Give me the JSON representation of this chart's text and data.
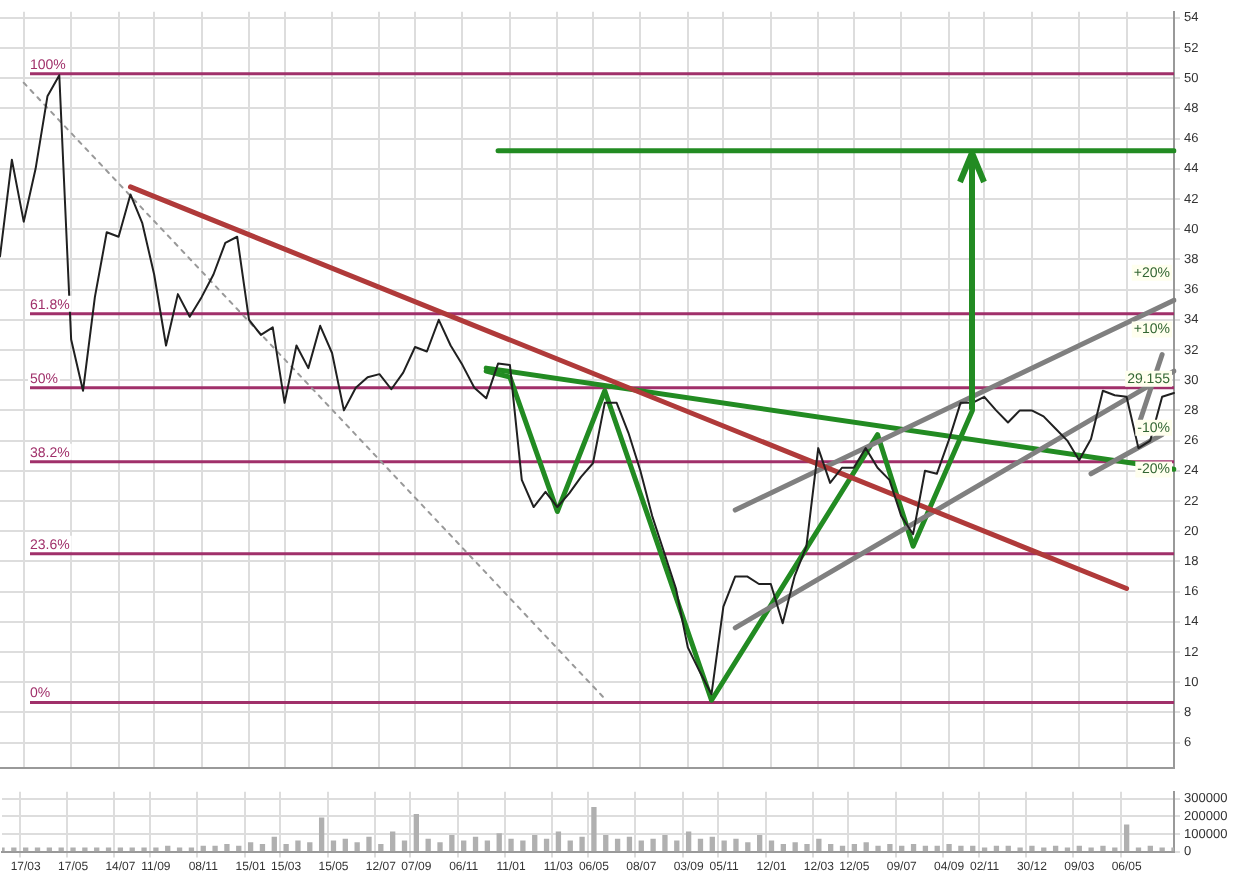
{
  "chart_data": [
    {
      "type": "line",
      "categories": [
        null,
        null,
        null,
        null,
        null,
        null,
        null,
        null,
        null,
        null,
        null,
        null,
        null,
        null,
        null,
        null,
        null,
        null,
        null,
        null,
        null,
        null,
        null,
        null,
        null,
        null,
        null,
        null,
        null,
        null,
        null,
        null,
        null,
        null,
        null,
        null,
        null,
        null,
        null,
        null,
        null,
        null,
        null,
        null,
        null,
        null,
        null,
        null,
        null,
        null,
        null,
        null,
        null,
        null,
        null,
        null,
        null,
        null,
        null,
        null,
        null,
        null,
        null,
        null,
        null,
        null,
        null,
        null,
        null,
        null,
        null,
        null,
        null,
        null,
        null,
        null,
        null,
        null,
        null,
        null,
        null,
        null,
        null,
        null,
        null,
        null,
        null,
        null,
        null,
        null,
        null,
        null,
        null,
        null,
        null,
        null,
        null,
        null,
        null,
        null
      ],
      "ylim": [
        4.3,
        54.4
      ],
      "yticks": [
        6,
        8,
        10,
        12,
        14,
        16,
        18,
        20,
        22,
        24,
        26,
        28,
        30,
        32,
        34,
        36,
        38,
        40,
        42,
        44,
        46,
        48,
        50,
        52,
        54
      ],
      "tick_labels": "y",
      "grid": true,
      "series": [
        {
          "color": "#202020",
          "values": [
            38.2,
            44.6,
            40.5,
            44,
            48.8,
            50.2,
            32.7,
            29.3,
            35.5,
            39.8,
            39.5,
            42.3,
            40.4,
            37,
            32.3,
            35.7,
            34.2,
            35.5,
            37,
            39.1,
            39.5,
            34,
            33,
            33.5,
            28.5,
            32.3,
            30.8,
            33.6,
            31.8,
            28,
            29.5,
            30.2,
            30.4,
            29.4,
            30.5,
            32.2,
            31.9,
            34,
            32.3,
            31,
            29.5,
            28.8,
            31.1,
            31,
            23.4,
            21.6,
            22.6,
            21.6,
            22.5,
            23.6,
            24.5,
            28.5,
            28.5,
            26.5,
            24,
            21,
            18.6,
            16.2,
            12.3,
            10.7,
            9.2,
            15,
            17,
            17,
            16.5,
            16.5,
            13.9,
            17,
            19,
            25.5,
            23.2,
            24.2,
            24.2,
            25.5,
            24.2,
            23.4,
            21,
            19.8,
            24,
            23.8,
            26,
            28.5,
            28.5,
            28.9,
            28,
            27.2,
            28,
            28,
            27.6,
            26.8,
            26,
            24.7,
            26.1,
            29.3,
            29,
            28.9,
            25.5,
            26,
            28.9,
            29.155
          ]
        },
        {
          "color": "#b03a3a",
          "values": [
            null,
            null,
            null,
            null,
            null,
            null,
            null,
            null,
            null,
            null,
            null,
            42.8,
            null,
            null,
            null,
            null,
            null,
            null,
            null,
            null,
            null,
            null,
            null,
            null,
            null,
            null,
            null,
            null,
            null,
            null,
            null,
            null,
            null,
            null,
            null,
            null,
            null,
            null,
            null,
            null,
            null,
            null,
            null,
            null,
            null,
            null,
            null,
            null,
            null,
            null,
            null,
            null,
            null,
            null,
            null,
            null,
            null,
            null,
            null,
            null,
            null,
            null,
            null,
            null,
            null,
            null,
            null,
            null,
            null,
            null,
            null,
            null,
            null,
            null,
            null,
            null,
            null,
            null,
            null,
            null,
            null,
            null,
            null,
            null,
            null,
            null,
            null,
            null,
            null,
            null,
            null,
            null,
            null,
            null,
            null,
            16.2,
            null,
            null,
            null,
            null
          ]
        },
        {
          "color": "#999999",
          "line_style": "dotted",
          "values": [
            null,
            null,
            49.7,
            null,
            null,
            null,
            null,
            null,
            null,
            null,
            null,
            null,
            null,
            null,
            null,
            null,
            null,
            null,
            null,
            null,
            null,
            null,
            null,
            null,
            null,
            null,
            null,
            null,
            null,
            null,
            null,
            null,
            null,
            null,
            null,
            null,
            null,
            null,
            null,
            null,
            null,
            null,
            null,
            null,
            null,
            null,
            null,
            null,
            null,
            null,
            null,
            8.9,
            null,
            null,
            null,
            null,
            null,
            null,
            null,
            null,
            null,
            null,
            null,
            null,
            null,
            null,
            null,
            null,
            null,
            null,
            null,
            null,
            null,
            null,
            null,
            null,
            null,
            null,
            null,
            null,
            null,
            null,
            null,
            null,
            null,
            null,
            null,
            null,
            null,
            null,
            null,
            null,
            null,
            null,
            null,
            null,
            null,
            null,
            null,
            null
          ]
        },
        {
          "color": "#808080",
          "values": [
            null,
            null,
            null,
            null,
            null,
            null,
            null,
            null,
            null,
            null,
            null,
            null,
            null,
            null,
            null,
            null,
            null,
            null,
            null,
            null,
            null,
            null,
            null,
            null,
            null,
            null,
            null,
            null,
            null,
            null,
            null,
            null,
            null,
            null,
            null,
            null,
            null,
            null,
            null,
            null,
            null,
            null,
            null,
            null,
            null,
            null,
            null,
            null,
            null,
            null,
            null,
            null,
            null,
            null,
            null,
            null,
            null,
            null,
            null,
            null,
            null,
            null,
            21.4,
            null,
            null,
            null,
            null,
            null,
            null,
            null,
            null,
            null,
            null,
            null,
            null,
            null,
            null,
            null,
            null,
            null,
            null,
            null,
            null,
            null,
            null,
            null,
            null,
            null,
            null,
            null,
            null,
            null,
            null,
            null,
            null,
            null,
            null,
            null,
            null,
            35.3
          ]
        },
        {
          "color": "#808080",
          "values": [
            null,
            null,
            null,
            null,
            null,
            null,
            null,
            null,
            null,
            null,
            null,
            null,
            null,
            null,
            null,
            null,
            null,
            null,
            null,
            null,
            null,
            null,
            null,
            null,
            null,
            null,
            null,
            null,
            null,
            null,
            null,
            null,
            null,
            null,
            null,
            null,
            null,
            null,
            null,
            null,
            null,
            null,
            null,
            null,
            null,
            null,
            null,
            null,
            null,
            null,
            null,
            null,
            null,
            null,
            null,
            null,
            null,
            null,
            null,
            null,
            null,
            null,
            13.6,
            null,
            null,
            null,
            null,
            null,
            null,
            null,
            null,
            null,
            null,
            null,
            null,
            null,
            null,
            null,
            null,
            null,
            null,
            null,
            null,
            null,
            null,
            null,
            null,
            null,
            null,
            null,
            null,
            null,
            null,
            null,
            null,
            null,
            null,
            null,
            null,
            30.6
          ]
        },
        {
          "color": "#808080",
          "values": [
            null,
            null,
            null,
            null,
            null,
            null,
            null,
            null,
            null,
            null,
            null,
            null,
            null,
            null,
            null,
            null,
            null,
            null,
            null,
            null,
            null,
            null,
            null,
            null,
            null,
            null,
            null,
            null,
            null,
            null,
            null,
            null,
            null,
            null,
            null,
            null,
            null,
            null,
            null,
            null,
            null,
            null,
            null,
            null,
            null,
            null,
            null,
            null,
            null,
            null,
            null,
            null,
            null,
            null,
            null,
            null,
            null,
            null,
            null,
            null,
            null,
            null,
            null,
            null,
            null,
            null,
            null,
            null,
            null,
            null,
            null,
            null,
            null,
            null,
            null,
            null,
            null,
            null,
            null,
            null,
            null,
            null,
            null,
            null,
            null,
            null,
            null,
            null,
            null,
            null,
            null,
            null,
            null,
            null,
            null,
            null,
            27,
            null,
            31.7,
            null
          ]
        },
        {
          "color": "#808080",
          "values": [
            null,
            null,
            null,
            null,
            null,
            null,
            null,
            null,
            null,
            null,
            null,
            null,
            null,
            null,
            null,
            null,
            null,
            null,
            null,
            null,
            null,
            null,
            null,
            null,
            null,
            null,
            null,
            null,
            null,
            null,
            null,
            null,
            null,
            null,
            null,
            null,
            null,
            null,
            null,
            null,
            null,
            null,
            null,
            null,
            null,
            null,
            null,
            null,
            null,
            null,
            null,
            null,
            null,
            null,
            null,
            null,
            null,
            null,
            null,
            null,
            null,
            null,
            null,
            null,
            null,
            null,
            null,
            null,
            null,
            null,
            null,
            null,
            null,
            null,
            null,
            null,
            null,
            null,
            null,
            null,
            null,
            null,
            null,
            null,
            null,
            null,
            null,
            null,
            null,
            null,
            null,
            null,
            23.8,
            null,
            null,
            null,
            null,
            null,
            26.4,
            null
          ]
        },
        {
          "color": "#228b22",
          "values": [
            null,
            null,
            null,
            null,
            null,
            null,
            null,
            null,
            null,
            null,
            null,
            null,
            null,
            null,
            null,
            null,
            null,
            null,
            null,
            null,
            null,
            null,
            null,
            null,
            null,
            null,
            null,
            null,
            null,
            null,
            null,
            null,
            null,
            null,
            null,
            null,
            null,
            null,
            null,
            null,
            null,
            30.6,
            null,
            30.2,
            null,
            null,
            null,
            21.3,
            null,
            null,
            null,
            29.3,
            null,
            null,
            null,
            null,
            null,
            null,
            null,
            null,
            8.8,
            null,
            null,
            null,
            null,
            null,
            null,
            null,
            null,
            null,
            null,
            null,
            null,
            null,
            26.4,
            null,
            null,
            19,
            null,
            null,
            null,
            null,
            28,
            null,
            null,
            null,
            null,
            null,
            null,
            null,
            null,
            null,
            null,
            null,
            null,
            null,
            null,
            null,
            null,
            null
          ]
        },
        {
          "color": "#228b22",
          "values": [
            null,
            null,
            null,
            null,
            null,
            null,
            null,
            null,
            null,
            null,
            null,
            null,
            null,
            null,
            null,
            null,
            null,
            null,
            null,
            null,
            null,
            null,
            null,
            null,
            null,
            null,
            null,
            null,
            null,
            null,
            null,
            null,
            null,
            null,
            null,
            null,
            null,
            null,
            null,
            null,
            null,
            30.8,
            null,
            null,
            null,
            null,
            null,
            null,
            null,
            null,
            null,
            null,
            null,
            null,
            null,
            null,
            null,
            null,
            null,
            null,
            null,
            null,
            null,
            null,
            null,
            null,
            null,
            null,
            null,
            null,
            null,
            null,
            null,
            null,
            null,
            null,
            null,
            null,
            null,
            null,
            null,
            null,
            null,
            null,
            null,
            null,
            null,
            null,
            null,
            null,
            null,
            null,
            null,
            null,
            null,
            null,
            null,
            null,
            null,
            24.1
          ]
        },
        {
          "color": "#228b22",
          "values": [
            null,
            null,
            null,
            null,
            null,
            null,
            null,
            null,
            null,
            null,
            null,
            null,
            null,
            null,
            null,
            null,
            null,
            null,
            null,
            null,
            null,
            null,
            null,
            null,
            null,
            null,
            null,
            null,
            null,
            null,
            null,
            null,
            null,
            null,
            null,
            null,
            null,
            null,
            null,
            null,
            null,
            null,
            45.2,
            null,
            null,
            null,
            null,
            null,
            null,
            null,
            null,
            null,
            null,
            null,
            null,
            null,
            null,
            null,
            null,
            null,
            null,
            null,
            null,
            null,
            null,
            null,
            null,
            null,
            null,
            null,
            null,
            null,
            null,
            null,
            null,
            null,
            null,
            null,
            null,
            null,
            null,
            null,
            null,
            null,
            null,
            null,
            null,
            null,
            null,
            null,
            null,
            null,
            null,
            null,
            null,
            null,
            null,
            null,
            null,
            45.2
          ]
        }
      ],
      "ref_lines": [
        {
          "axis": "y",
          "value": 50.3,
          "color": "#a0306a"
        },
        {
          "axis": "y",
          "value": 34.4,
          "color": "#a0306a"
        },
        {
          "axis": "y",
          "value": 29.5,
          "color": "#a0306a"
        },
        {
          "axis": "y",
          "value": 24.6,
          "color": "#a0306a"
        },
        {
          "axis": "y",
          "value": 18.5,
          "color": "#a0306a"
        },
        {
          "axis": "y",
          "value": 8.65,
          "color": "#a0306a"
        }
      ],
      "annotations": [
        {
          "text": "100%",
          "y": 50.3
        },
        {
          "text": "61.8%",
          "y": 34.4
        },
        {
          "text": "50%",
          "y": 29.5
        },
        {
          "text": "38.2%",
          "y": 24.6
        },
        {
          "text": "23.6%",
          "y": 18.5
        },
        {
          "text": "0%",
          "y": 8.65
        },
        "+20%",
        "+10%",
        "-10%",
        "-20%",
        "29.155"
      ]
    },
    {
      "type": "bar",
      "categories": [
        null,
        null,
        "17/03",
        null,
        null,
        null,
        "17/05",
        null,
        null,
        null,
        "14/07",
        null,
        null,
        "11/09",
        null,
        null,
        null,
        "08/11",
        null,
        null,
        null,
        "15/01",
        null,
        null,
        "15/03",
        null,
        null,
        null,
        "15/05",
        null,
        null,
        null,
        "12/07",
        null,
        null,
        "07/09",
        null,
        null,
        null,
        "06/11",
        null,
        null,
        null,
        "11/01",
        null,
        null,
        null,
        "11/03",
        null,
        null,
        "06/05",
        null,
        null,
        null,
        "08/07",
        null,
        null,
        null,
        "03/09",
        null,
        null,
        "05/11",
        null,
        null,
        null,
        "12/01",
        null,
        null,
        null,
        "12/03",
        null,
        null,
        "12/05",
        null,
        null,
        null,
        "09/07",
        null,
        null,
        null,
        "04/09",
        null,
        null,
        "02/11",
        null,
        null,
        null,
        "30/12",
        null,
        null,
        null,
        "09/03",
        null,
        null,
        null,
        "06/05",
        null,
        null,
        null,
        null
      ],
      "ylim": [
        0,
        340000
      ],
      "yticks": [
        0,
        100000,
        200000,
        300000
      ],
      "grid": true,
      "color": "#b0b0b0",
      "values": [
        20000,
        20000,
        20000,
        20000,
        20000,
        20000,
        20000,
        20000,
        20000,
        20000,
        20000,
        20000,
        20000,
        20000,
        30000,
        20000,
        20000,
        30000,
        30000,
        40000,
        30000,
        50000,
        40000,
        80000,
        40000,
        60000,
        50000,
        190000,
        60000,
        70000,
        50000,
        80000,
        40000,
        110000,
        60000,
        210000,
        70000,
        50000,
        90000,
        60000,
        80000,
        60000,
        100000,
        70000,
        60000,
        90000,
        70000,
        110000,
        60000,
        80000,
        250000,
        90000,
        70000,
        80000,
        60000,
        70000,
        90000,
        60000,
        110000,
        70000,
        80000,
        60000,
        70000,
        50000,
        90000,
        60000,
        40000,
        50000,
        40000,
        70000,
        40000,
        30000,
        40000,
        50000,
        30000,
        40000,
        30000,
        40000,
        30000,
        30000,
        40000,
        30000,
        30000,
        20000,
        30000,
        30000,
        20000,
        30000,
        20000,
        30000,
        20000,
        30000,
        20000,
        30000,
        20000,
        150000,
        20000,
        30000,
        20000,
        20000
      ]
    }
  ]
}
